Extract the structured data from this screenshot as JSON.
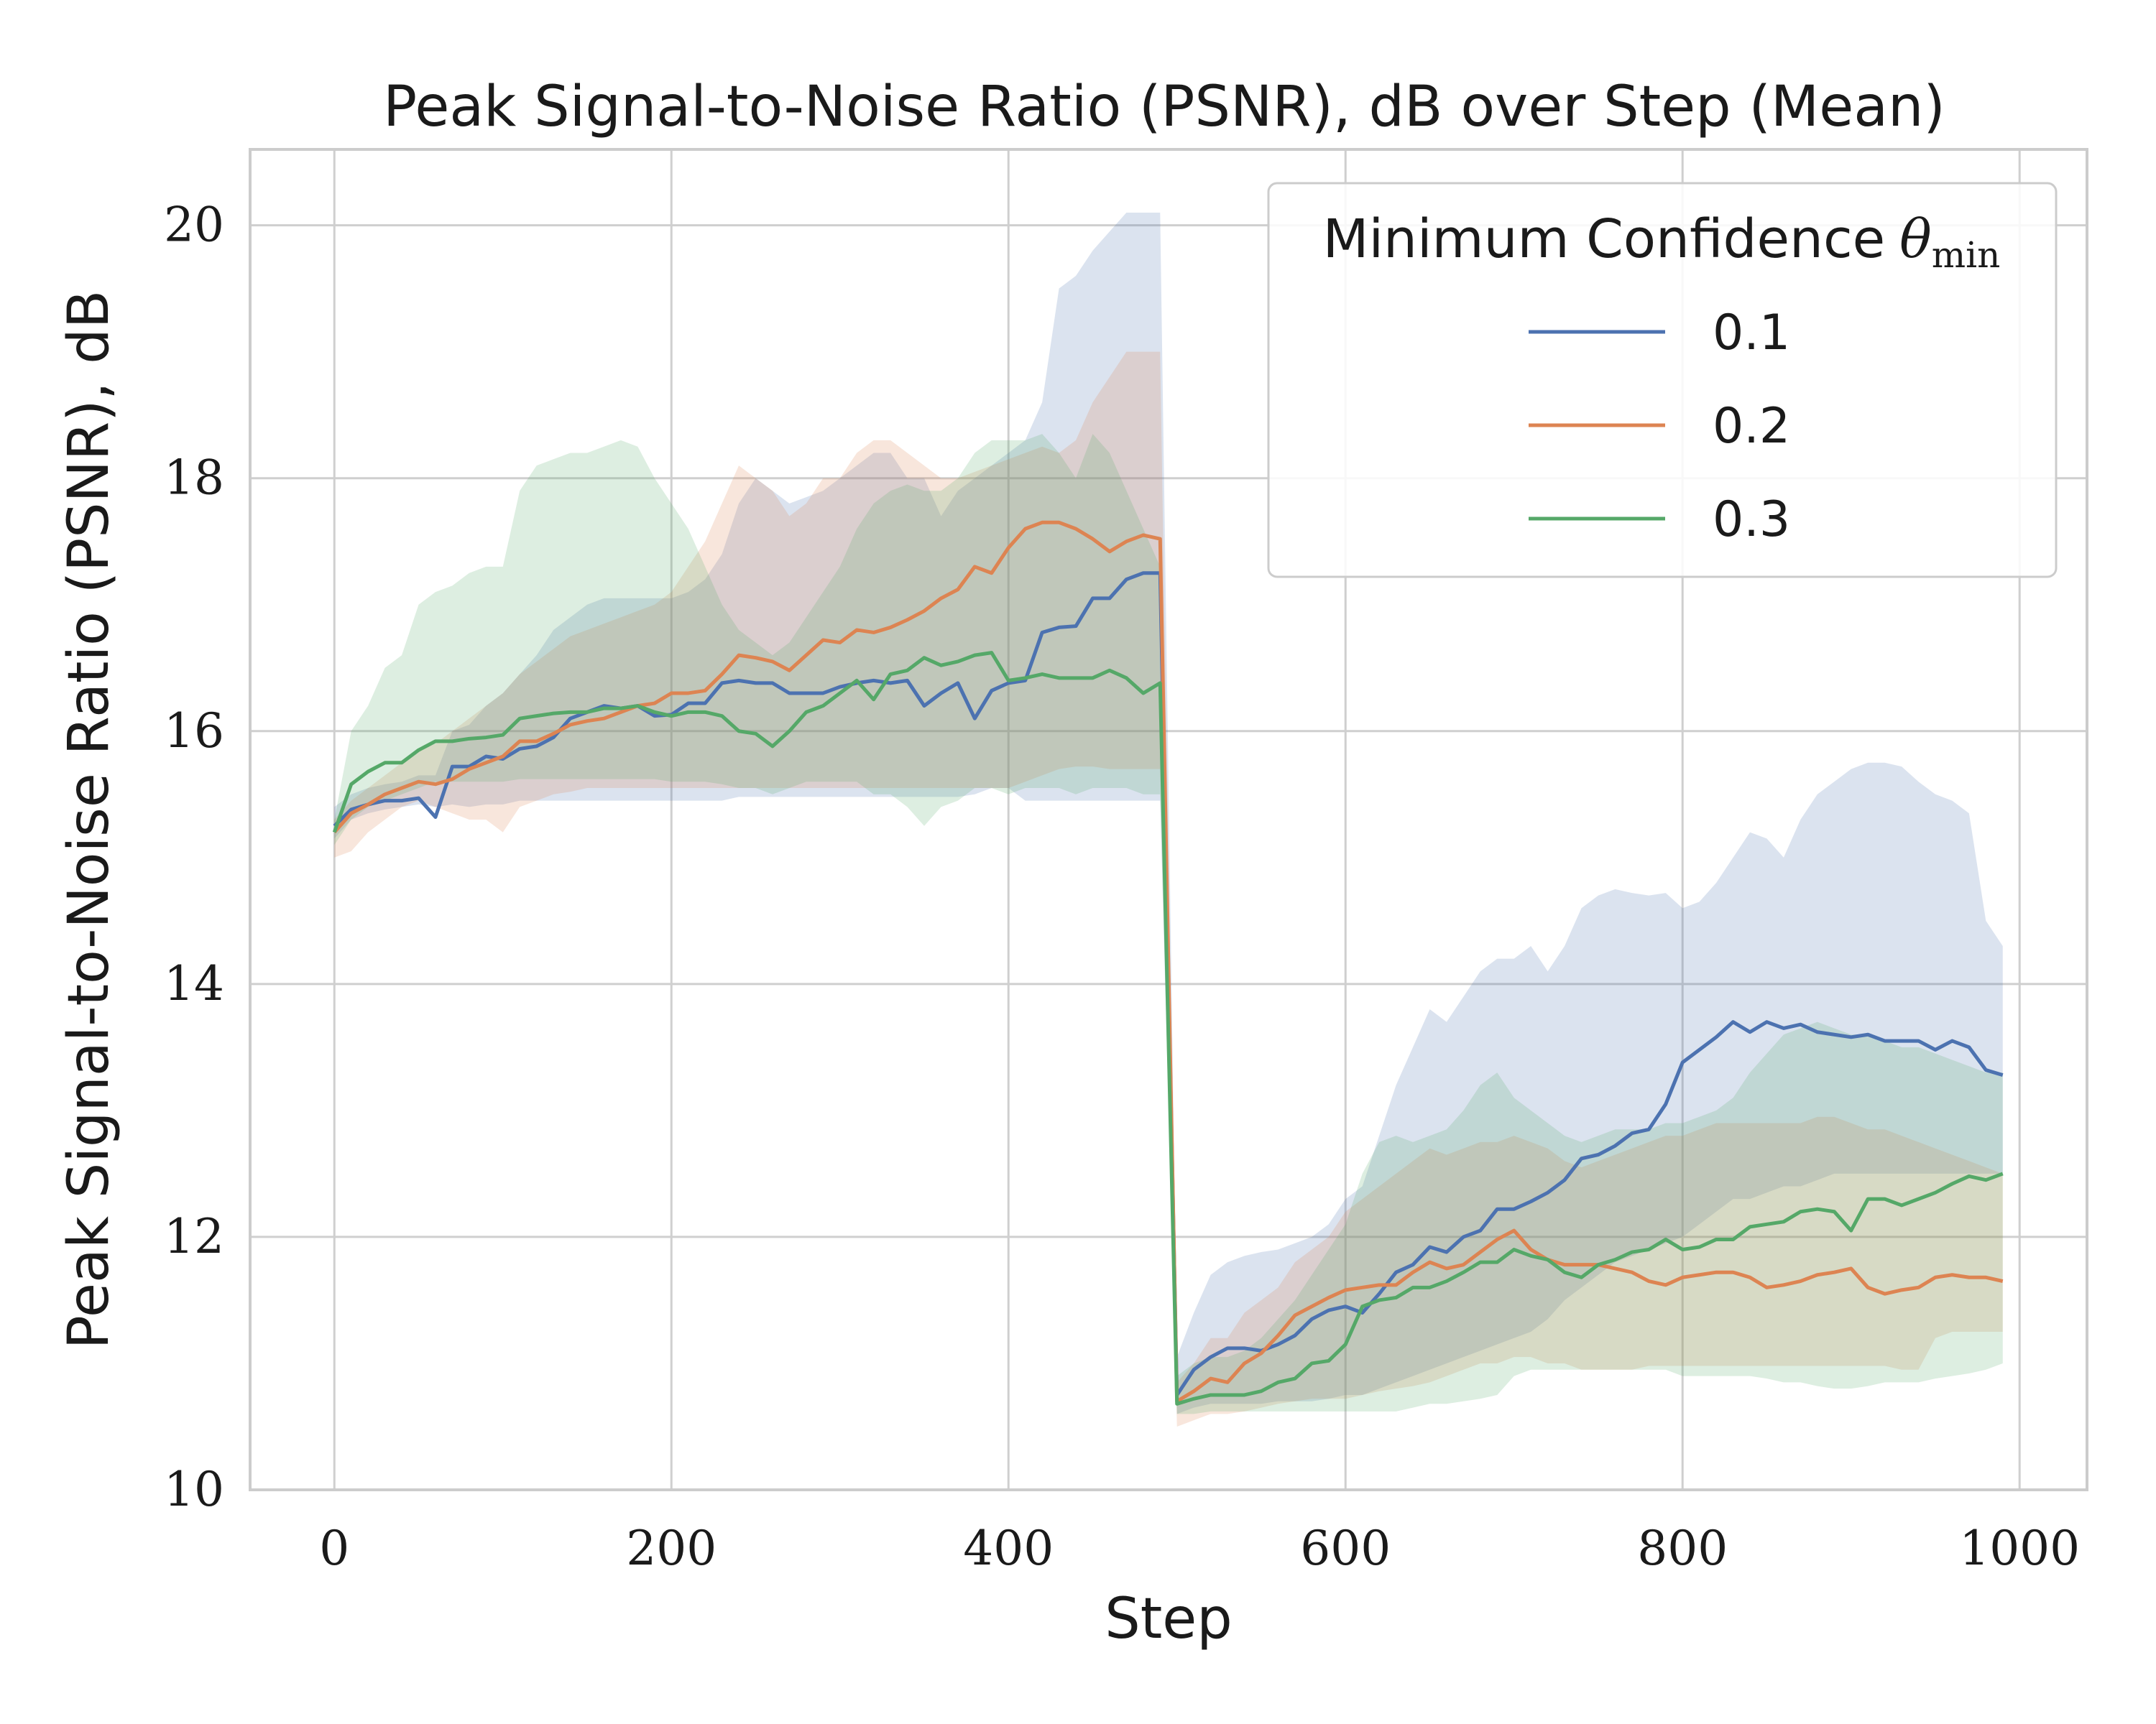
{
  "chart_data": {
    "type": "line",
    "title": "Peak Signal-to-Noise Ratio (PSNR), dB over Step (Mean)",
    "xlabel": "Step",
    "ylabel": "Peak Signal-to-Noise Ratio (PSNR), dB",
    "xlim": [
      -50,
      1040
    ],
    "ylim": [
      10,
      20.6
    ],
    "xticks": [
      0,
      200,
      400,
      600,
      800,
      1000
    ],
    "yticks": [
      10,
      12,
      14,
      16,
      18,
      20
    ],
    "grid": true,
    "legend": {
      "title": "Minimum Confidence",
      "title_symbol": "θ",
      "title_subscript": "min",
      "placement": "top-right"
    },
    "x": [
      0,
      10,
      20,
      30,
      40,
      50,
      60,
      70,
      80,
      90,
      100,
      110,
      120,
      130,
      140,
      150,
      160,
      170,
      180,
      190,
      200,
      210,
      220,
      230,
      240,
      250,
      260,
      270,
      280,
      290,
      300,
      310,
      320,
      330,
      340,
      350,
      360,
      370,
      380,
      390,
      400,
      410,
      420,
      430,
      440,
      450,
      460,
      470,
      480,
      490,
      500,
      510,
      520,
      530,
      540,
      550,
      560,
      570,
      580,
      590,
      600,
      610,
      620,
      630,
      640,
      650,
      660,
      670,
      680,
      690,
      700,
      710,
      720,
      730,
      740,
      750,
      760,
      770,
      780,
      790,
      800,
      810,
      820,
      830,
      840,
      850,
      860,
      870,
      880,
      890,
      900,
      910,
      920,
      930,
      940,
      950,
      960,
      970,
      980,
      990
    ],
    "series": [
      {
        "name": "0.1",
        "color": "#4c72b0",
        "values": [
          15.25,
          15.38,
          15.42,
          15.45,
          15.45,
          15.47,
          15.32,
          15.72,
          15.72,
          15.8,
          15.78,
          15.86,
          15.88,
          15.95,
          16.1,
          16.15,
          16.2,
          16.18,
          16.2,
          16.12,
          16.13,
          16.22,
          16.22,
          16.38,
          16.4,
          16.38,
          16.38,
          16.3,
          16.3,
          16.3,
          16.35,
          16.38,
          16.4,
          16.38,
          16.4,
          16.2,
          16.3,
          16.38,
          16.1,
          16.32,
          16.38,
          16.4,
          16.78,
          16.82,
          16.83,
          17.05,
          17.05,
          17.2,
          17.25,
          17.25,
          10.75,
          10.95,
          11.05,
          11.12,
          11.12,
          11.1,
          11.15,
          11.22,
          11.35,
          11.42,
          11.45,
          11.4,
          11.55,
          11.72,
          11.78,
          11.92,
          11.88,
          12.0,
          12.05,
          12.22,
          12.22,
          12.28,
          12.35,
          12.45,
          12.62,
          12.65,
          12.72,
          12.82,
          12.85,
          13.05,
          13.38,
          13.48,
          13.58,
          13.7,
          13.62,
          13.7,
          13.65,
          13.68,
          13.62,
          13.6,
          13.58,
          13.6,
          13.55,
          13.55,
          13.55,
          13.48,
          13.55,
          13.5,
          13.32,
          13.28
        ],
        "upper": [
          15.4,
          15.5,
          15.55,
          15.58,
          15.6,
          15.65,
          15.65,
          16.0,
          16.05,
          16.2,
          16.3,
          16.45,
          16.6,
          16.8,
          16.9,
          17.0,
          17.05,
          17.05,
          17.05,
          17.05,
          17.05,
          17.1,
          17.2,
          17.4,
          17.8,
          18.0,
          17.9,
          17.8,
          17.85,
          17.9,
          18.0,
          18.1,
          18.2,
          18.2,
          18.0,
          18.0,
          17.7,
          17.9,
          18.0,
          18.1,
          18.2,
          18.3,
          18.6,
          19.5,
          19.6,
          19.8,
          19.95,
          20.1,
          20.1,
          20.1,
          11.05,
          11.4,
          11.7,
          11.8,
          11.85,
          11.88,
          11.9,
          11.95,
          12.0,
          12.1,
          12.3,
          12.4,
          12.8,
          13.2,
          13.5,
          13.8,
          13.7,
          13.9,
          14.1,
          14.2,
          14.2,
          14.3,
          14.1,
          14.3,
          14.6,
          14.7,
          14.75,
          14.72,
          14.7,
          14.72,
          14.6,
          14.65,
          14.8,
          15.0,
          15.2,
          15.15,
          15.0,
          15.3,
          15.5,
          15.6,
          15.7,
          15.75,
          15.75,
          15.72,
          15.6,
          15.5,
          15.45,
          15.35,
          14.5,
          14.3
        ],
        "lower": [
          15.15,
          15.3,
          15.35,
          15.38,
          15.4,
          15.42,
          15.4,
          15.42,
          15.4,
          15.42,
          15.42,
          15.45,
          15.45,
          15.45,
          15.45,
          15.45,
          15.45,
          15.45,
          15.45,
          15.45,
          15.45,
          15.45,
          15.45,
          15.45,
          15.48,
          15.48,
          15.48,
          15.48,
          15.48,
          15.48,
          15.48,
          15.48,
          15.48,
          15.48,
          15.48,
          15.48,
          15.48,
          15.48,
          15.5,
          15.55,
          15.55,
          15.45,
          15.45,
          15.45,
          15.45,
          15.45,
          15.45,
          15.45,
          15.45,
          15.45,
          10.6,
          10.65,
          10.68,
          10.68,
          10.68,
          10.68,
          10.7,
          10.7,
          10.7,
          10.72,
          10.75,
          10.75,
          10.8,
          10.85,
          10.9,
          10.95,
          11.0,
          11.05,
          11.1,
          11.15,
          11.2,
          11.25,
          11.35,
          11.5,
          11.6,
          11.7,
          11.8,
          11.85,
          11.9,
          11.95,
          12.0,
          12.1,
          12.2,
          12.3,
          12.3,
          12.35,
          12.4,
          12.4,
          12.45,
          12.5,
          12.5,
          12.5,
          12.5,
          12.5,
          12.5,
          12.5,
          12.5,
          12.5,
          12.5,
          12.5
        ]
      },
      {
        "name": "0.2",
        "color": "#dd8452",
        "values": [
          15.2,
          15.35,
          15.42,
          15.5,
          15.55,
          15.6,
          15.58,
          15.62,
          15.7,
          15.75,
          15.8,
          15.92,
          15.92,
          15.98,
          16.05,
          16.08,
          16.1,
          16.15,
          16.2,
          16.22,
          16.3,
          16.3,
          16.32,
          16.45,
          16.6,
          16.58,
          16.55,
          16.48,
          16.6,
          16.72,
          16.7,
          16.8,
          16.78,
          16.82,
          16.88,
          16.95,
          17.05,
          17.12,
          17.3,
          17.25,
          17.45,
          17.6,
          17.65,
          17.65,
          17.6,
          17.52,
          17.42,
          17.5,
          17.55,
          17.52,
          10.7,
          10.78,
          10.88,
          10.85,
          11.0,
          11.08,
          11.22,
          11.38,
          11.45,
          11.52,
          11.58,
          11.6,
          11.62,
          11.62,
          11.72,
          11.8,
          11.75,
          11.78,
          11.88,
          11.98,
          12.05,
          11.9,
          11.82,
          11.78,
          11.78,
          11.78,
          11.75,
          11.72,
          11.65,
          11.62,
          11.68,
          11.7,
          11.72,
          11.72,
          11.68,
          11.6,
          11.62,
          11.65,
          11.7,
          11.72,
          11.75,
          11.6,
          11.55,
          11.58,
          11.6,
          11.68,
          11.7,
          11.68,
          11.68,
          11.65
        ],
        "upper": [
          15.3,
          15.45,
          15.55,
          15.65,
          15.75,
          15.85,
          15.9,
          16.0,
          16.1,
          16.2,
          16.3,
          16.45,
          16.55,
          16.65,
          16.75,
          16.8,
          16.85,
          16.9,
          16.95,
          17.0,
          17.1,
          17.3,
          17.5,
          17.8,
          18.1,
          18.0,
          17.9,
          17.7,
          17.8,
          18.0,
          18.0,
          18.2,
          18.3,
          18.3,
          18.2,
          18.1,
          18.0,
          18.0,
          18.05,
          18.1,
          18.15,
          18.2,
          18.25,
          18.2,
          18.3,
          18.6,
          18.8,
          19.0,
          19.0,
          19.0,
          10.85,
          11.0,
          11.2,
          11.2,
          11.4,
          11.5,
          11.6,
          11.8,
          11.9,
          12.0,
          12.2,
          12.3,
          12.4,
          12.5,
          12.6,
          12.7,
          12.65,
          12.7,
          12.75,
          12.75,
          12.8,
          12.75,
          12.7,
          12.6,
          12.55,
          12.6,
          12.65,
          12.7,
          12.75,
          12.8,
          12.8,
          12.85,
          12.9,
          12.9,
          12.9,
          12.9,
          12.9,
          12.9,
          12.95,
          12.95,
          12.9,
          12.85,
          12.85,
          12.8,
          12.75,
          12.7,
          12.65,
          12.6,
          12.55,
          12.5
        ],
        "lower": [
          15.0,
          15.05,
          15.2,
          15.3,
          15.4,
          15.45,
          15.4,
          15.35,
          15.3,
          15.3,
          15.2,
          15.4,
          15.45,
          15.5,
          15.52,
          15.55,
          15.55,
          15.55,
          15.55,
          15.55,
          15.55,
          15.55,
          15.55,
          15.55,
          15.55,
          15.55,
          15.55,
          15.55,
          15.55,
          15.55,
          15.55,
          15.55,
          15.55,
          15.55,
          15.55,
          15.55,
          15.55,
          15.55,
          15.55,
          15.55,
          15.55,
          15.6,
          15.65,
          15.7,
          15.72,
          15.72,
          15.7,
          15.7,
          15.7,
          15.7,
          10.5,
          10.55,
          10.6,
          10.6,
          10.62,
          10.65,
          10.68,
          10.7,
          10.72,
          10.72,
          10.72,
          10.75,
          10.78,
          10.8,
          10.82,
          10.85,
          10.9,
          10.95,
          11.0,
          11.0,
          11.05,
          11.05,
          11.0,
          11.0,
          10.95,
          10.95,
          10.95,
          10.95,
          10.98,
          10.98,
          10.98,
          10.98,
          10.98,
          10.98,
          10.98,
          10.98,
          10.98,
          10.98,
          10.98,
          10.98,
          10.98,
          10.98,
          10.98,
          10.95,
          10.95,
          11.2,
          11.25,
          11.25,
          11.25,
          11.25
        ]
      },
      {
        "name": "0.3",
        "color": "#55a868",
        "values": [
          15.2,
          15.58,
          15.68,
          15.75,
          15.75,
          15.85,
          15.92,
          15.92,
          15.94,
          15.95,
          15.97,
          16.1,
          16.12,
          16.14,
          16.15,
          16.15,
          16.18,
          16.18,
          16.2,
          16.15,
          16.12,
          16.15,
          16.15,
          16.12,
          16.0,
          15.98,
          15.88,
          16.0,
          16.15,
          16.2,
          16.3,
          16.4,
          16.25,
          16.45,
          16.48,
          16.58,
          16.52,
          16.55,
          16.6,
          16.62,
          16.4,
          16.42,
          16.45,
          16.42,
          16.42,
          16.42,
          16.48,
          16.42,
          16.3,
          16.38,
          10.68,
          10.72,
          10.75,
          10.75,
          10.75,
          10.78,
          10.85,
          10.88,
          11.0,
          11.02,
          11.15,
          11.45,
          11.5,
          11.52,
          11.6,
          11.6,
          11.65,
          11.72,
          11.8,
          11.8,
          11.9,
          11.85,
          11.82,
          11.72,
          11.68,
          11.78,
          11.82,
          11.88,
          11.9,
          11.98,
          11.9,
          11.92,
          11.98,
          11.98,
          12.08,
          12.1,
          12.12,
          12.2,
          12.22,
          12.2,
          12.05,
          12.3,
          12.3,
          12.25,
          12.3,
          12.35,
          12.42,
          12.48,
          12.45,
          12.5
        ],
        "upper": [
          15.3,
          16.0,
          16.2,
          16.5,
          16.6,
          17.0,
          17.1,
          17.15,
          17.25,
          17.3,
          17.3,
          17.9,
          18.1,
          18.15,
          18.2,
          18.2,
          18.25,
          18.3,
          18.25,
          18.0,
          17.8,
          17.6,
          17.3,
          17.0,
          16.8,
          16.7,
          16.6,
          16.7,
          16.9,
          17.1,
          17.3,
          17.6,
          17.8,
          17.9,
          17.95,
          17.9,
          17.9,
          18.0,
          18.2,
          18.3,
          18.3,
          18.3,
          18.35,
          18.2,
          18.0,
          18.35,
          18.2,
          17.9,
          17.6,
          17.3,
          10.9,
          11.0,
          11.05,
          11.05,
          11.1,
          11.2,
          11.35,
          11.5,
          11.7,
          11.9,
          12.1,
          12.5,
          12.75,
          12.8,
          12.75,
          12.8,
          12.85,
          13.0,
          13.2,
          13.3,
          13.1,
          13.0,
          12.9,
          12.8,
          12.75,
          12.8,
          12.85,
          12.85,
          12.85,
          12.9,
          12.9,
          12.95,
          13.0,
          13.1,
          13.3,
          13.45,
          13.6,
          13.65,
          13.7,
          13.65,
          13.6,
          13.6,
          13.55,
          13.5,
          13.5,
          13.45,
          13.4,
          13.35,
          13.3,
          13.3
        ],
        "lower": [
          15.1,
          15.3,
          15.4,
          15.45,
          15.5,
          15.55,
          15.6,
          15.6,
          15.6,
          15.6,
          15.6,
          15.62,
          15.62,
          15.62,
          15.62,
          15.62,
          15.62,
          15.62,
          15.62,
          15.62,
          15.6,
          15.6,
          15.6,
          15.58,
          15.55,
          15.55,
          15.5,
          15.55,
          15.6,
          15.6,
          15.6,
          15.6,
          15.5,
          15.5,
          15.4,
          15.25,
          15.4,
          15.45,
          15.55,
          15.55,
          15.5,
          15.55,
          15.55,
          15.55,
          15.5,
          15.55,
          15.55,
          15.55,
          15.5,
          15.5,
          10.6,
          10.6,
          10.62,
          10.62,
          10.62,
          10.62,
          10.62,
          10.62,
          10.62,
          10.62,
          10.62,
          10.62,
          10.62,
          10.62,
          10.65,
          10.68,
          10.68,
          10.7,
          10.72,
          10.75,
          10.9,
          10.95,
          10.95,
          10.95,
          10.95,
          10.95,
          10.95,
          10.95,
          10.95,
          10.95,
          10.9,
          10.9,
          10.9,
          10.9,
          10.9,
          10.88,
          10.85,
          10.85,
          10.82,
          10.8,
          10.8,
          10.82,
          10.85,
          10.85,
          10.85,
          10.88,
          10.9,
          10.92,
          10.95,
          11.0
        ]
      }
    ]
  }
}
